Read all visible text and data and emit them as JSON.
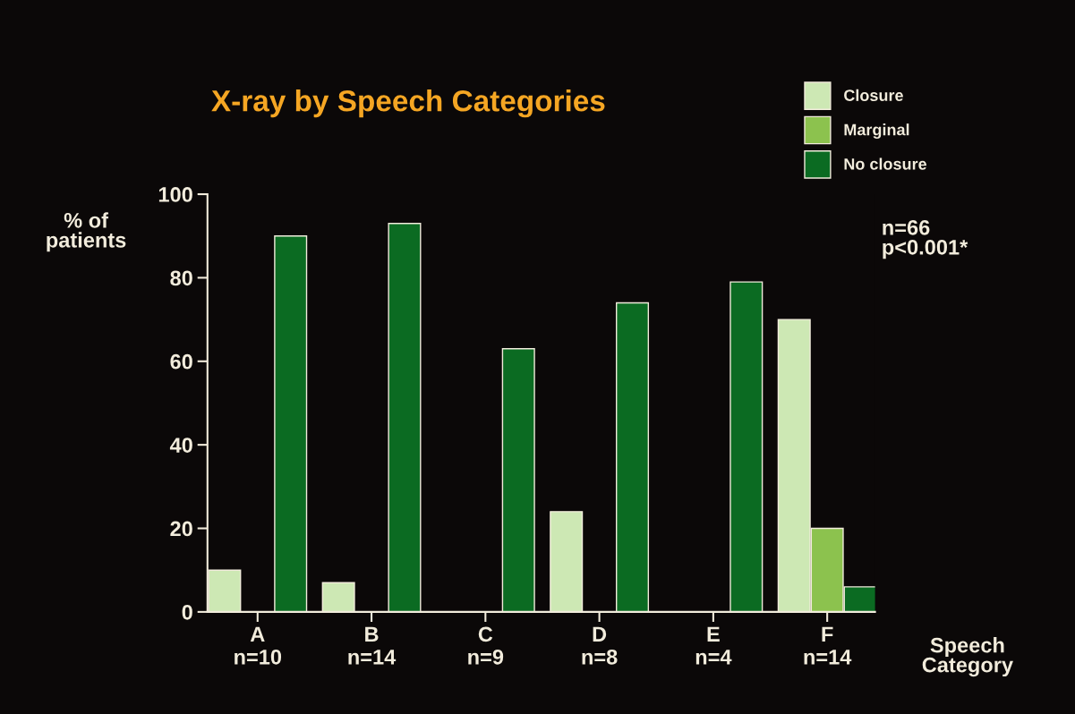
{
  "chart_data": {
    "type": "bar",
    "title": "X-ray by Speech Categories",
    "ylabel": "% of\npatients",
    "xlabel": "Speech\nCategory",
    "categories": [
      "A\nn=10",
      "B\nn=14",
      "C\nn=9",
      "D\nn=8",
      "E\nn=4",
      "F\nn=14"
    ],
    "series": [
      {
        "name": "Closure",
        "color": "#cde8b4",
        "values": [
          10,
          7,
          0,
          24,
          0,
          70
        ]
      },
      {
        "name": "Marginal",
        "color": "#8cc24e",
        "values": [
          0,
          0,
          0,
          0,
          0,
          20
        ]
      },
      {
        "name": "No closure",
        "color": "#0b6b22",
        "values": [
          90,
          93,
          63,
          74,
          79,
          6
        ]
      }
    ],
    "ylim": [
      0,
      100
    ],
    "yticks": [
      0,
      20,
      40,
      60,
      80,
      100
    ],
    "grid": false,
    "legend": "top right",
    "annotations": [
      "n=66\np<0.001*"
    ]
  }
}
